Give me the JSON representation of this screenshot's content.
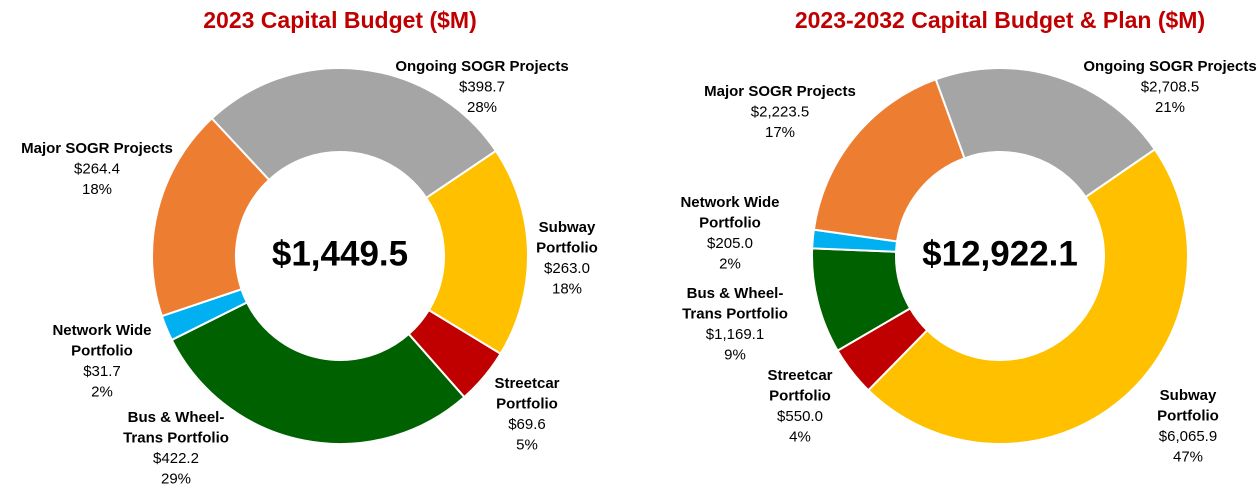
{
  "chart_data": [
    {
      "type": "donut",
      "title": "2023 Capital Budget ($M)",
      "total": 1449.5,
      "total_label": "$1,449.5",
      "categories": [
        [
          "Ongoing SOGR Projects"
        ],
        [
          "Subway",
          "Portfolio"
        ],
        [
          "Streetcar",
          "Portfolio"
        ],
        [
          "Bus & Wheel-",
          "Trans Portfolio"
        ],
        [
          "Network Wide",
          "Portfolio"
        ],
        [
          "Major SOGR Projects"
        ]
      ],
      "values": [
        398.7,
        263.0,
        69.6,
        422.2,
        31.7,
        264.4
      ],
      "value_labels": [
        "$398.7",
        "$263.0",
        "$69.6",
        "$422.2",
        "$31.7",
        "$264.4"
      ],
      "percents": [
        28,
        18,
        5,
        29,
        2,
        18
      ],
      "percent_labels": [
        "28%",
        "18%",
        "5%",
        "29%",
        "2%",
        "18%"
      ],
      "colors": [
        "#a5a5a5",
        "#ffc000",
        "#c00000",
        "#006100",
        "#00b0f0",
        "#ed7d31"
      ]
    },
    {
      "type": "donut",
      "title": "2023-2032 Capital Budget & Plan ($M)",
      "total": 12922.1,
      "total_label": "$12,922.1",
      "categories": [
        [
          "Ongoing SOGR Projects"
        ],
        [
          "Subway",
          "Portfolio"
        ],
        [
          "Streetcar",
          "Portfolio"
        ],
        [
          "Bus & Wheel-",
          "Trans Portfolio"
        ],
        [
          "Network Wide",
          "Portfolio"
        ],
        [
          "Major SOGR Projects"
        ]
      ],
      "values": [
        2708.5,
        6065.9,
        550.0,
        1169.1,
        205.0,
        2223.5
      ],
      "value_labels": [
        "$2,708.5",
        "$6,065.9",
        "$550.0",
        "$1,169.1",
        "$205.0",
        "$2,223.5"
      ],
      "percents": [
        21,
        47,
        4,
        9,
        2,
        17
      ],
      "percent_labels": [
        "21%",
        "47%",
        "4%",
        "9%",
        "2%",
        "17%"
      ],
      "colors": [
        "#a5a5a5",
        "#ffc000",
        "#c00000",
        "#006100",
        "#00b0f0",
        "#ed7d31"
      ]
    }
  ]
}
